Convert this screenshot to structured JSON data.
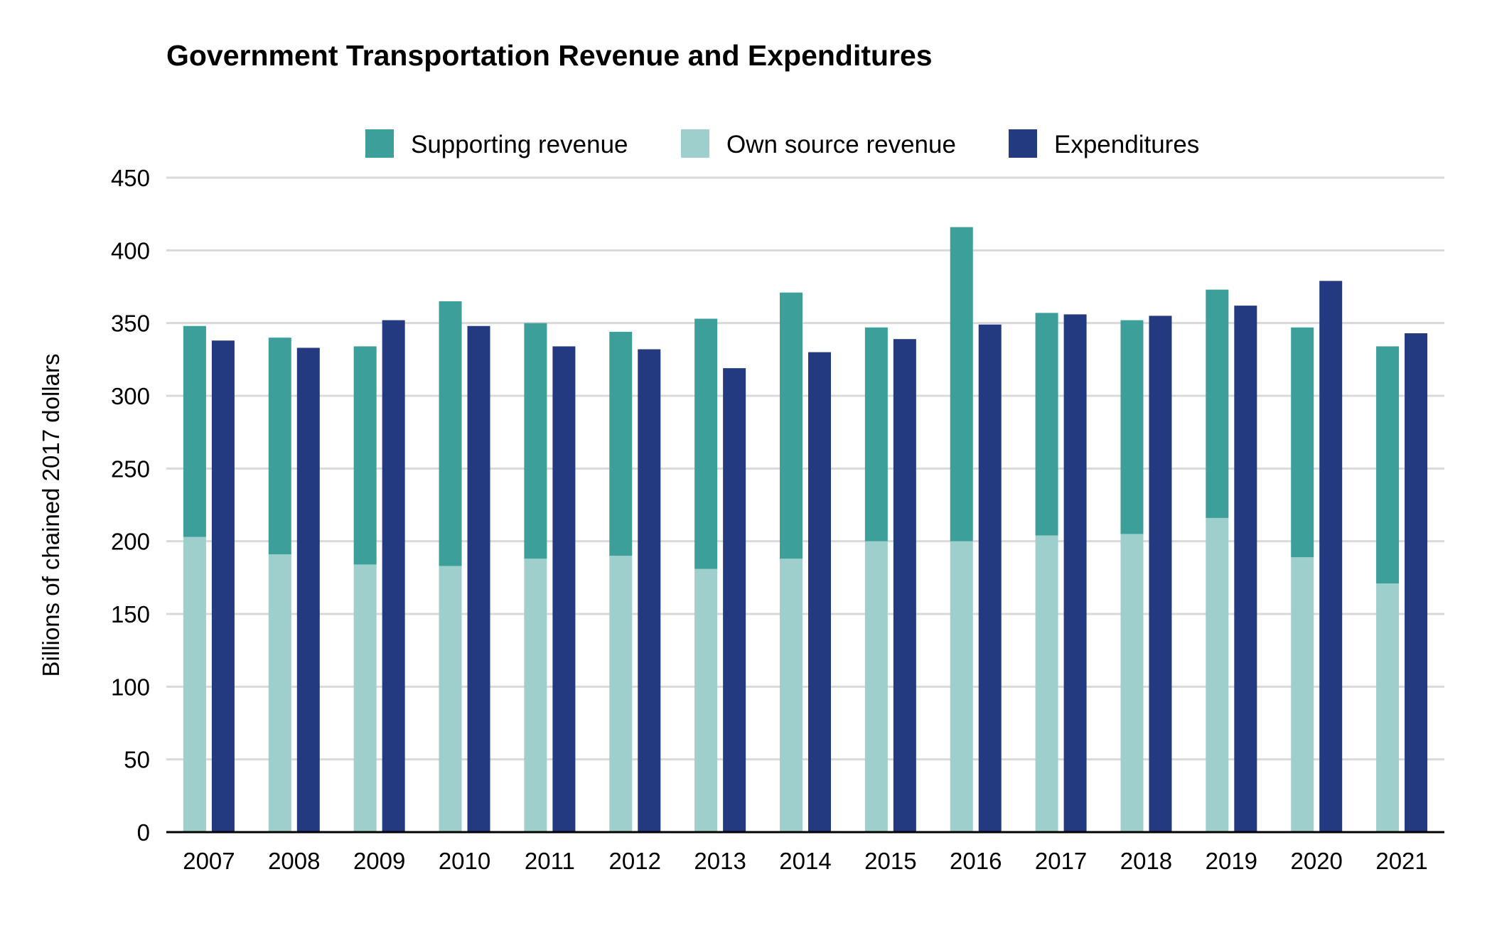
{
  "chart_data": {
    "type": "bar",
    "title": "Government Transportation Revenue and Expenditures",
    "xlabel": "",
    "ylabel": "Billions of chained 2017 dollars",
    "ylim": [
      0,
      450
    ],
    "yticks": [
      0,
      50,
      100,
      150,
      200,
      250,
      300,
      350,
      400,
      450
    ],
    "grid": true,
    "legend_position": "top-center",
    "categories": [
      "2007",
      "2008",
      "2009",
      "2010",
      "2011",
      "2012",
      "2013",
      "2014",
      "2015",
      "2016",
      "2017",
      "2018",
      "2019",
      "2020",
      "2021"
    ],
    "series": [
      {
        "name": "Supporting revenue",
        "color": "#3d9f9a",
        "stack": "revenue",
        "values": [
          145,
          149,
          150,
          182,
          162,
          154,
          172,
          183,
          147,
          216,
          153,
          147,
          157,
          158,
          163
        ]
      },
      {
        "name": "Own source revenue",
        "color": "#9ecfcc",
        "stack": "revenue",
        "values": [
          203,
          191,
          184,
          183,
          188,
          190,
          181,
          188,
          200,
          200,
          204,
          205,
          216,
          189,
          171
        ]
      },
      {
        "name": "Expenditures",
        "color": "#243a80",
        "stack": "expenditures",
        "values": [
          338,
          333,
          352,
          348,
          334,
          332,
          319,
          330,
          339,
          349,
          356,
          355,
          362,
          379,
          343
        ]
      }
    ],
    "legend_order": [
      "Supporting revenue",
      "Own source revenue",
      "Expenditures"
    ]
  }
}
